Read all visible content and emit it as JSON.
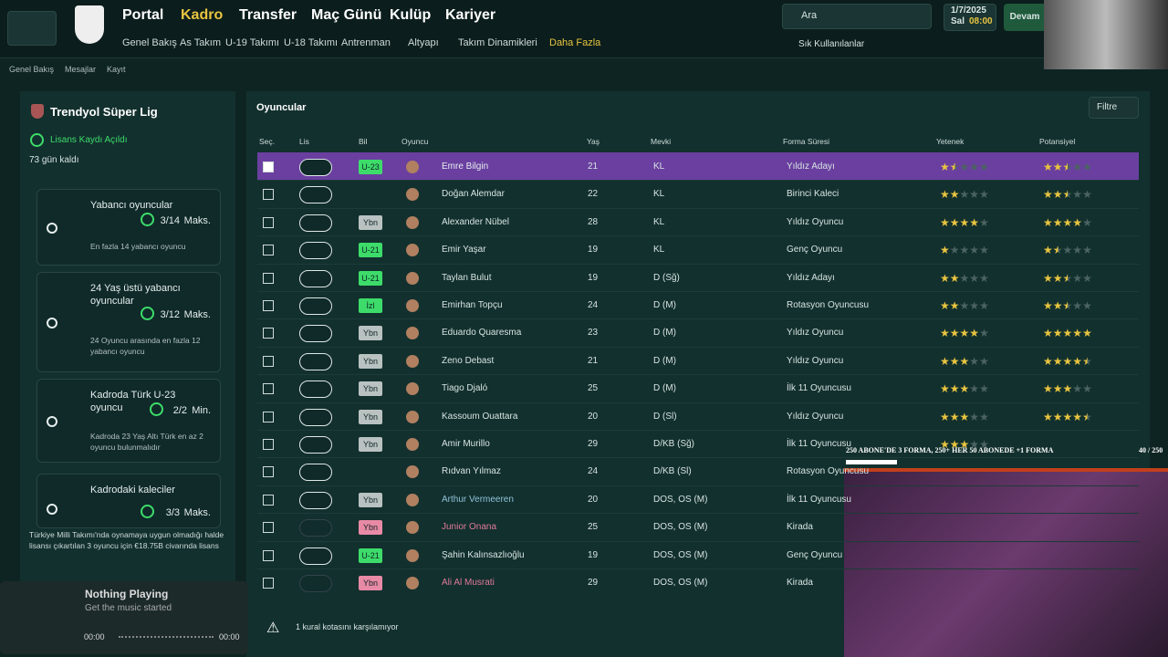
{
  "nav": {
    "main": [
      "Portal",
      "Kadro",
      "Transfer",
      "Maç Günü",
      "Kulüp",
      "Kariyer"
    ],
    "active": 1,
    "sub": [
      "Genel Bakış",
      "As Takım",
      "U-19 Takımı",
      "U-18 Takımı",
      "Antrenman",
      "Altyapı",
      "Takım Dinamikleri",
      "Daha Fazla"
    ],
    "search": "Ara",
    "date": "1/7/2025",
    "day": "Sal",
    "time": "08:00",
    "continue": "Devam",
    "favorites": "Sık Kullanılanlar"
  },
  "breadcrumb": [
    "Genel Bakış",
    "Mesajlar",
    "Kayıt"
  ],
  "left": {
    "league": "Trendyol Süper Lig",
    "status": "Lisans Kaydı Açıldı",
    "days_left": "73 gün kaldı",
    "rules": [
      {
        "title": "Yabancı oyuncular",
        "count": "3/14",
        "limit": "Maks.",
        "desc": "En fazla 14 yabancı oyuncu"
      },
      {
        "title": "24 Yaş üstü yabancı oyuncular",
        "count": "3/12",
        "limit": "Maks.",
        "desc": "24 Oyuncu arasında en fazla 12 yabancı oyuncu"
      },
      {
        "title": "Kadroda Türk U-23 oyuncu",
        "count": "2/2",
        "limit": "Min.",
        "desc": "Kadroda 23 Yaş Altı Türk en az 2 oyuncu bulunmalıdır"
      },
      {
        "title": "Kadrodaki kaleciler",
        "count": "3/3",
        "limit": "Maks.",
        "desc": null
      }
    ],
    "note": "Türkiye Milli Takımı'nda oynamaya uygun olmadığı halde lisansı çıkartılan 3 oyuncu için €18.75B civarında lisans"
  },
  "music": {
    "title": "Nothing Playing",
    "subtitle": "Get the music started",
    "start": "00:00",
    "end": "00:00"
  },
  "overlay": {
    "goal": "250 ABONE'DE 3 FORMA, 250+ HER 50 ABONEDE +1 FORMA",
    "progress": "40 / 250"
  },
  "table": {
    "title": "Oyuncular",
    "filter": "Filtre",
    "headers": [
      "Seç.",
      "Lis",
      "Bil",
      "Oyuncu",
      "Yaş",
      "Mevki",
      "Forma Süresi",
      "Yetenek",
      "Potansiyel"
    ],
    "rows": [
      {
        "selected": true,
        "license": "off",
        "badge": "U-23",
        "badge_color": "#3ddc6a",
        "name": "Emre Bilgin",
        "name_color": "#e6eeee",
        "age": "21",
        "position": "KL",
        "role": "Yıldız Adayı",
        "ability": 1.5,
        "potential": 2.5
      },
      {
        "selected": false,
        "license": "on",
        "badge": null,
        "badge_color": null,
        "name": "Doğan Alemdar",
        "name_color": "#d7e4e2",
        "age": "22",
        "position": "KL",
        "role": "Birinci Kaleci",
        "ability": 2,
        "potential": 2.5
      },
      {
        "selected": false,
        "license": "on",
        "badge": "Ybn",
        "badge_color": "#b9c2c1",
        "name": "Alexander Nübel",
        "name_color": "#d7e4e2",
        "age": "28",
        "position": "KL",
        "role": "Yıldız Oyuncu",
        "ability": 4,
        "potential": 4
      },
      {
        "selected": false,
        "license": "off",
        "badge": "U-21",
        "badge_color": "#3ddc6a",
        "name": "Emir Yaşar",
        "name_color": "#d7e4e2",
        "age": "19",
        "position": "KL",
        "role": "Genç Oyuncu",
        "ability": 1,
        "potential": 1.5
      },
      {
        "selected": false,
        "license": "on",
        "badge": "U-21",
        "badge_color": "#3ddc6a",
        "name": "Taylan Bulut",
        "name_color": "#d7e4e2",
        "age": "19",
        "position": "D (Sğ)",
        "role": "Yıldız Adayı",
        "ability": 2,
        "potential": 2.5
      },
      {
        "selected": false,
        "license": "on",
        "badge": "İzl",
        "badge_color": "#3ddc6a",
        "name": "Emirhan Topçu",
        "name_color": "#d7e4e2",
        "age": "24",
        "position": "D (M)",
        "role": "Rotasyon Oyuncusu",
        "ability": 2,
        "potential": 2.5
      },
      {
        "selected": false,
        "license": "off",
        "badge": "Ybn",
        "badge_color": "#b9c2c1",
        "name": "Eduardo Quaresma",
        "name_color": "#d7e4e2",
        "age": "23",
        "position": "D (M)",
        "role": "Yıldız Oyuncu",
        "ability": 4,
        "potential": 5
      },
      {
        "selected": false,
        "license": "off",
        "badge": "Ybn",
        "badge_color": "#b9c2c1",
        "name": "Zeno Debast",
        "name_color": "#d7e4e2",
        "age": "21",
        "position": "D (M)",
        "role": "Yıldız Oyuncu",
        "ability": 3,
        "potential": 4.5
      },
      {
        "selected": false,
        "license": "on",
        "badge": "Ybn",
        "badge_color": "#b9c2c1",
        "name": "Tiago Djaló",
        "name_color": "#d7e4e2",
        "age": "25",
        "position": "D (M)",
        "role": "İlk 11 Oyuncusu",
        "ability": 3,
        "potential": 3
      },
      {
        "selected": false,
        "license": "off",
        "badge": "Ybn",
        "badge_color": "#b9c2c1",
        "name": "Kassoum Ouattara",
        "name_color": "#d7e4e2",
        "age": "20",
        "position": "D (Sl)",
        "role": "Yıldız Oyuncu",
        "ability": 3,
        "potential": 4.5
      },
      {
        "selected": false,
        "license": "on",
        "badge": "Ybn",
        "badge_color": "#b9c2c1",
        "name": "Amir Murillo",
        "name_color": "#d7e4e2",
        "age": "29",
        "position": "D/KB (Sğ)",
        "role": "İlk 11 Oyuncusu",
        "ability": 3,
        "potential": null
      },
      {
        "selected": false,
        "license": "on",
        "badge": null,
        "badge_color": null,
        "name": "Rıdvan Yılmaz",
        "name_color": "#d7e4e2",
        "age": "24",
        "position": "D/KB (Sl)",
        "role": "Rotasyon Oyuncusu",
        "ability": null,
        "potential": null
      },
      {
        "selected": false,
        "license": "off",
        "badge": "Ybn",
        "badge_color": "#b9c2c1",
        "name": "Arthur Vermeeren",
        "name_color": "#8fc1d8",
        "age": "20",
        "position": "DOS, OS (M)",
        "role": "İlk 11 Oyuncusu",
        "ability": null,
        "potential": null
      },
      {
        "selected": false,
        "license": "disabled",
        "badge": "Ybn",
        "badge_color": "#e88aa6",
        "name": "Junior Onana",
        "name_color": "#e07a9a",
        "age": "25",
        "position": "DOS, OS (M)",
        "role": "Kirada",
        "ability": null,
        "potential": null
      },
      {
        "selected": false,
        "license": "off",
        "badge": "U-21",
        "badge_color": "#3ddc6a",
        "name": "Şahin Kalınsazlıoğlu",
        "name_color": "#d7e4e2",
        "age": "19",
        "position": "DOS, OS (M)",
        "role": "Genç Oyuncu",
        "ability": null,
        "potential": null
      },
      {
        "selected": false,
        "license": "disabled",
        "badge": "Ybn",
        "badge_color": "#e88aa6",
        "name": "Ali Al Musrati",
        "name_color": "#e07a9a",
        "age": "29",
        "position": "DOS, OS (M)",
        "role": "Kirada",
        "ability": null,
        "potential": null
      }
    ],
    "footer": "1 kural kotasını karşılamıyor"
  }
}
